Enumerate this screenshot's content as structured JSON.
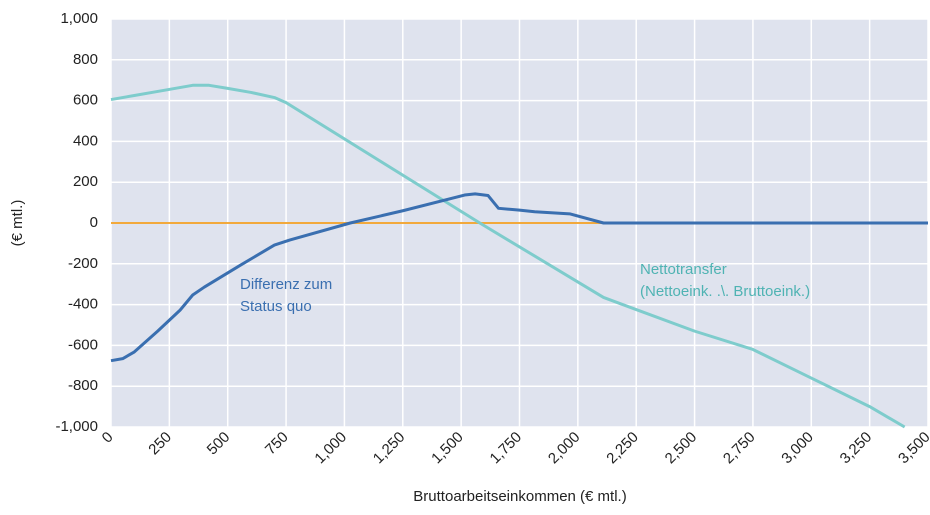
{
  "chart_data": {
    "type": "line",
    "x_label": "Bruttoarbeitseinkommen (€ mtl.)",
    "y_label": "(€ mtl.)",
    "annotations": [
      [
        "Differenz zum",
        "Status quo"
      ],
      [
        "Nettotransfer",
        "(Nettoeink. .\\. Bruttoeink.)"
      ]
    ],
    "xlim": [
      0,
      3500
    ],
    "ylim": [
      -1000,
      1000
    ],
    "xticks": [
      0,
      250,
      500,
      750,
      {
        "value": 1000,
        "label": "1,000"
      },
      {
        "value": 1250,
        "label": "1,250"
      },
      {
        "value": 1500,
        "label": "1,500"
      },
      {
        "value": 1750,
        "label": "1,750"
      },
      {
        "value": 2000,
        "label": "2,000"
      },
      {
        "value": 2250,
        "label": "2,250"
      },
      {
        "value": 2500,
        "label": "2,500"
      },
      {
        "value": 2750,
        "label": "2,750"
      },
      {
        "value": 3000,
        "label": "3,000"
      },
      {
        "value": 3250,
        "label": "3,250"
      },
      {
        "value": 3500,
        "label": "3,500"
      }
    ],
    "yticks": [
      {
        "value": -1000,
        "label": "-1,000"
      },
      -800,
      -600,
      -400,
      -200,
      0,
      200,
      400,
      600,
      800,
      {
        "value": 1000,
        "label": "1,000"
      }
    ],
    "grid": true,
    "background": "#dfe3ee",
    "series": [
      {
        "color": "#f2a93b",
        "x": [
          0,
          2110
        ],
        "values": [
          0,
          0
        ]
      },
      {
        "color": "#7ecccc",
        "x": [
          0,
          100,
          200,
          350,
          420,
          500,
          600,
          700,
          750,
          1580,
          2110,
          2500,
          2750,
          3000,
          3250,
          3400
        ],
        "values": [
          605,
          625,
          645,
          675,
          675,
          660,
          640,
          615,
          590,
          0,
          -365,
          -530,
          -620,
          -760,
          -900,
          -1000
        ]
      },
      {
        "color": "#3a6fb0",
        "x": [
          0,
          50,
          100,
          200,
          296,
          350,
          400,
          550,
          700,
          767,
          1025,
          1250,
          1515,
          1560,
          1615,
          1660,
          1750,
          1815,
          1965,
          2110,
          3500
        ],
        "values": [
          -675,
          -665,
          -632,
          -530,
          -427,
          -353,
          -314,
          -210,
          -108,
          -83,
          0,
          60,
          137,
          143,
          135,
          72,
          63,
          55,
          45,
          0,
          0
        ]
      }
    ]
  }
}
